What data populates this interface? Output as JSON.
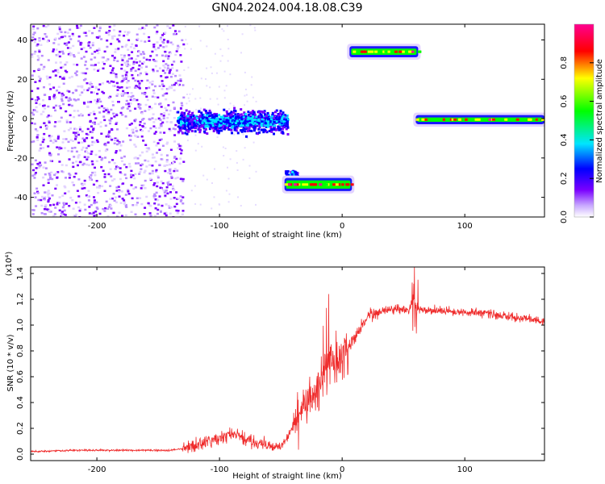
{
  "title": "GN04.2024.004.18.08.C39",
  "chart_data": [
    {
      "type": "heatmap",
      "xlabel": "Height of straight line (km)",
      "ylabel": "Frequency (Hz)",
      "xlim": [
        -254,
        165
      ],
      "ylim": [
        -50,
        48
      ],
      "xticks": [
        -200,
        -100,
        0,
        100
      ],
      "yticks": [
        -40,
        -20,
        0,
        20,
        40
      ],
      "colorbar": {
        "label": "Normalized spectral amplitude",
        "range": [
          0,
          1
        ],
        "ticks": [
          "0.0",
          "0.2",
          "0.4",
          "0.6",
          "0.8"
        ],
        "colormap": "rainbow",
        "colors": [
          "#ffffff",
          "#7a00ff",
          "#0000ff",
          "#00e5ff",
          "#00ff00",
          "#ffff00",
          "#ff0000",
          "#ff00a0"
        ]
      },
      "features": [
        {
          "name": "diffuse",
          "x": [
            -254,
            -130
          ],
          "y": [
            -50,
            48
          ],
          "amplitude": 0.05
        },
        {
          "name": "transition",
          "x": [
            -135,
            -45
          ],
          "y": [
            -10,
            8
          ],
          "amplitude": 0.3
        },
        {
          "name": "band-lower",
          "x": [
            -47,
            8
          ],
          "y": [
            -36,
            -31
          ],
          "amplitude": 0.55
        },
        {
          "name": "band-upper",
          "x": [
            6,
            62
          ],
          "y": [
            32,
            36
          ],
          "amplitude": 0.5
        },
        {
          "name": "band-center",
          "x": [
            60,
            165
          ],
          "y": [
            -2,
            1
          ],
          "amplitude": 0.5
        }
      ]
    },
    {
      "type": "line",
      "xlabel": "Height of straight line (km)",
      "ylabel": "SNR (10 * v/v)",
      "multiplier": "(x10⁴)",
      "xlim": [
        -254,
        165
      ],
      "ylim": [
        -0.05,
        1.45
      ],
      "xticks": [
        -200,
        -100,
        0,
        100
      ],
      "yticks": [
        "0.0",
        "0.2",
        "0.4",
        "0.6",
        "0.8",
        "1.0",
        "1.2",
        "1.4"
      ],
      "color": "#ef2b2b",
      "grid": false,
      "series": [
        {
          "x": [
            -254,
            -220,
            -180,
            -140,
            -125,
            -115,
            -100,
            -90,
            -80,
            -70,
            -60,
            -50,
            -45,
            -40,
            -35,
            -30,
            -25,
            -20,
            -15,
            -10,
            -5,
            0,
            5,
            10,
            15,
            20,
            25,
            30,
            35,
            40,
            45,
            50,
            55,
            58,
            60,
            62,
            65,
            70,
            80,
            90,
            100,
            110,
            120,
            130,
            140,
            150,
            160,
            165
          ],
          "y": [
            0.02,
            0.03,
            0.03,
            0.03,
            0.05,
            0.08,
            0.12,
            0.16,
            0.12,
            0.09,
            0.06,
            0.06,
            0.12,
            0.22,
            0.3,
            0.38,
            0.42,
            0.5,
            0.62,
            0.7,
            0.72,
            0.75,
            0.82,
            0.9,
            0.98,
            1.05,
            1.08,
            1.1,
            1.12,
            1.13,
            1.13,
            1.12,
            1.13,
            1.2,
            1.14,
            1.12,
            1.12,
            1.11,
            1.11,
            1.11,
            1.1,
            1.1,
            1.09,
            1.07,
            1.06,
            1.05,
            1.03,
            1.03
          ]
        }
      ]
    }
  ]
}
